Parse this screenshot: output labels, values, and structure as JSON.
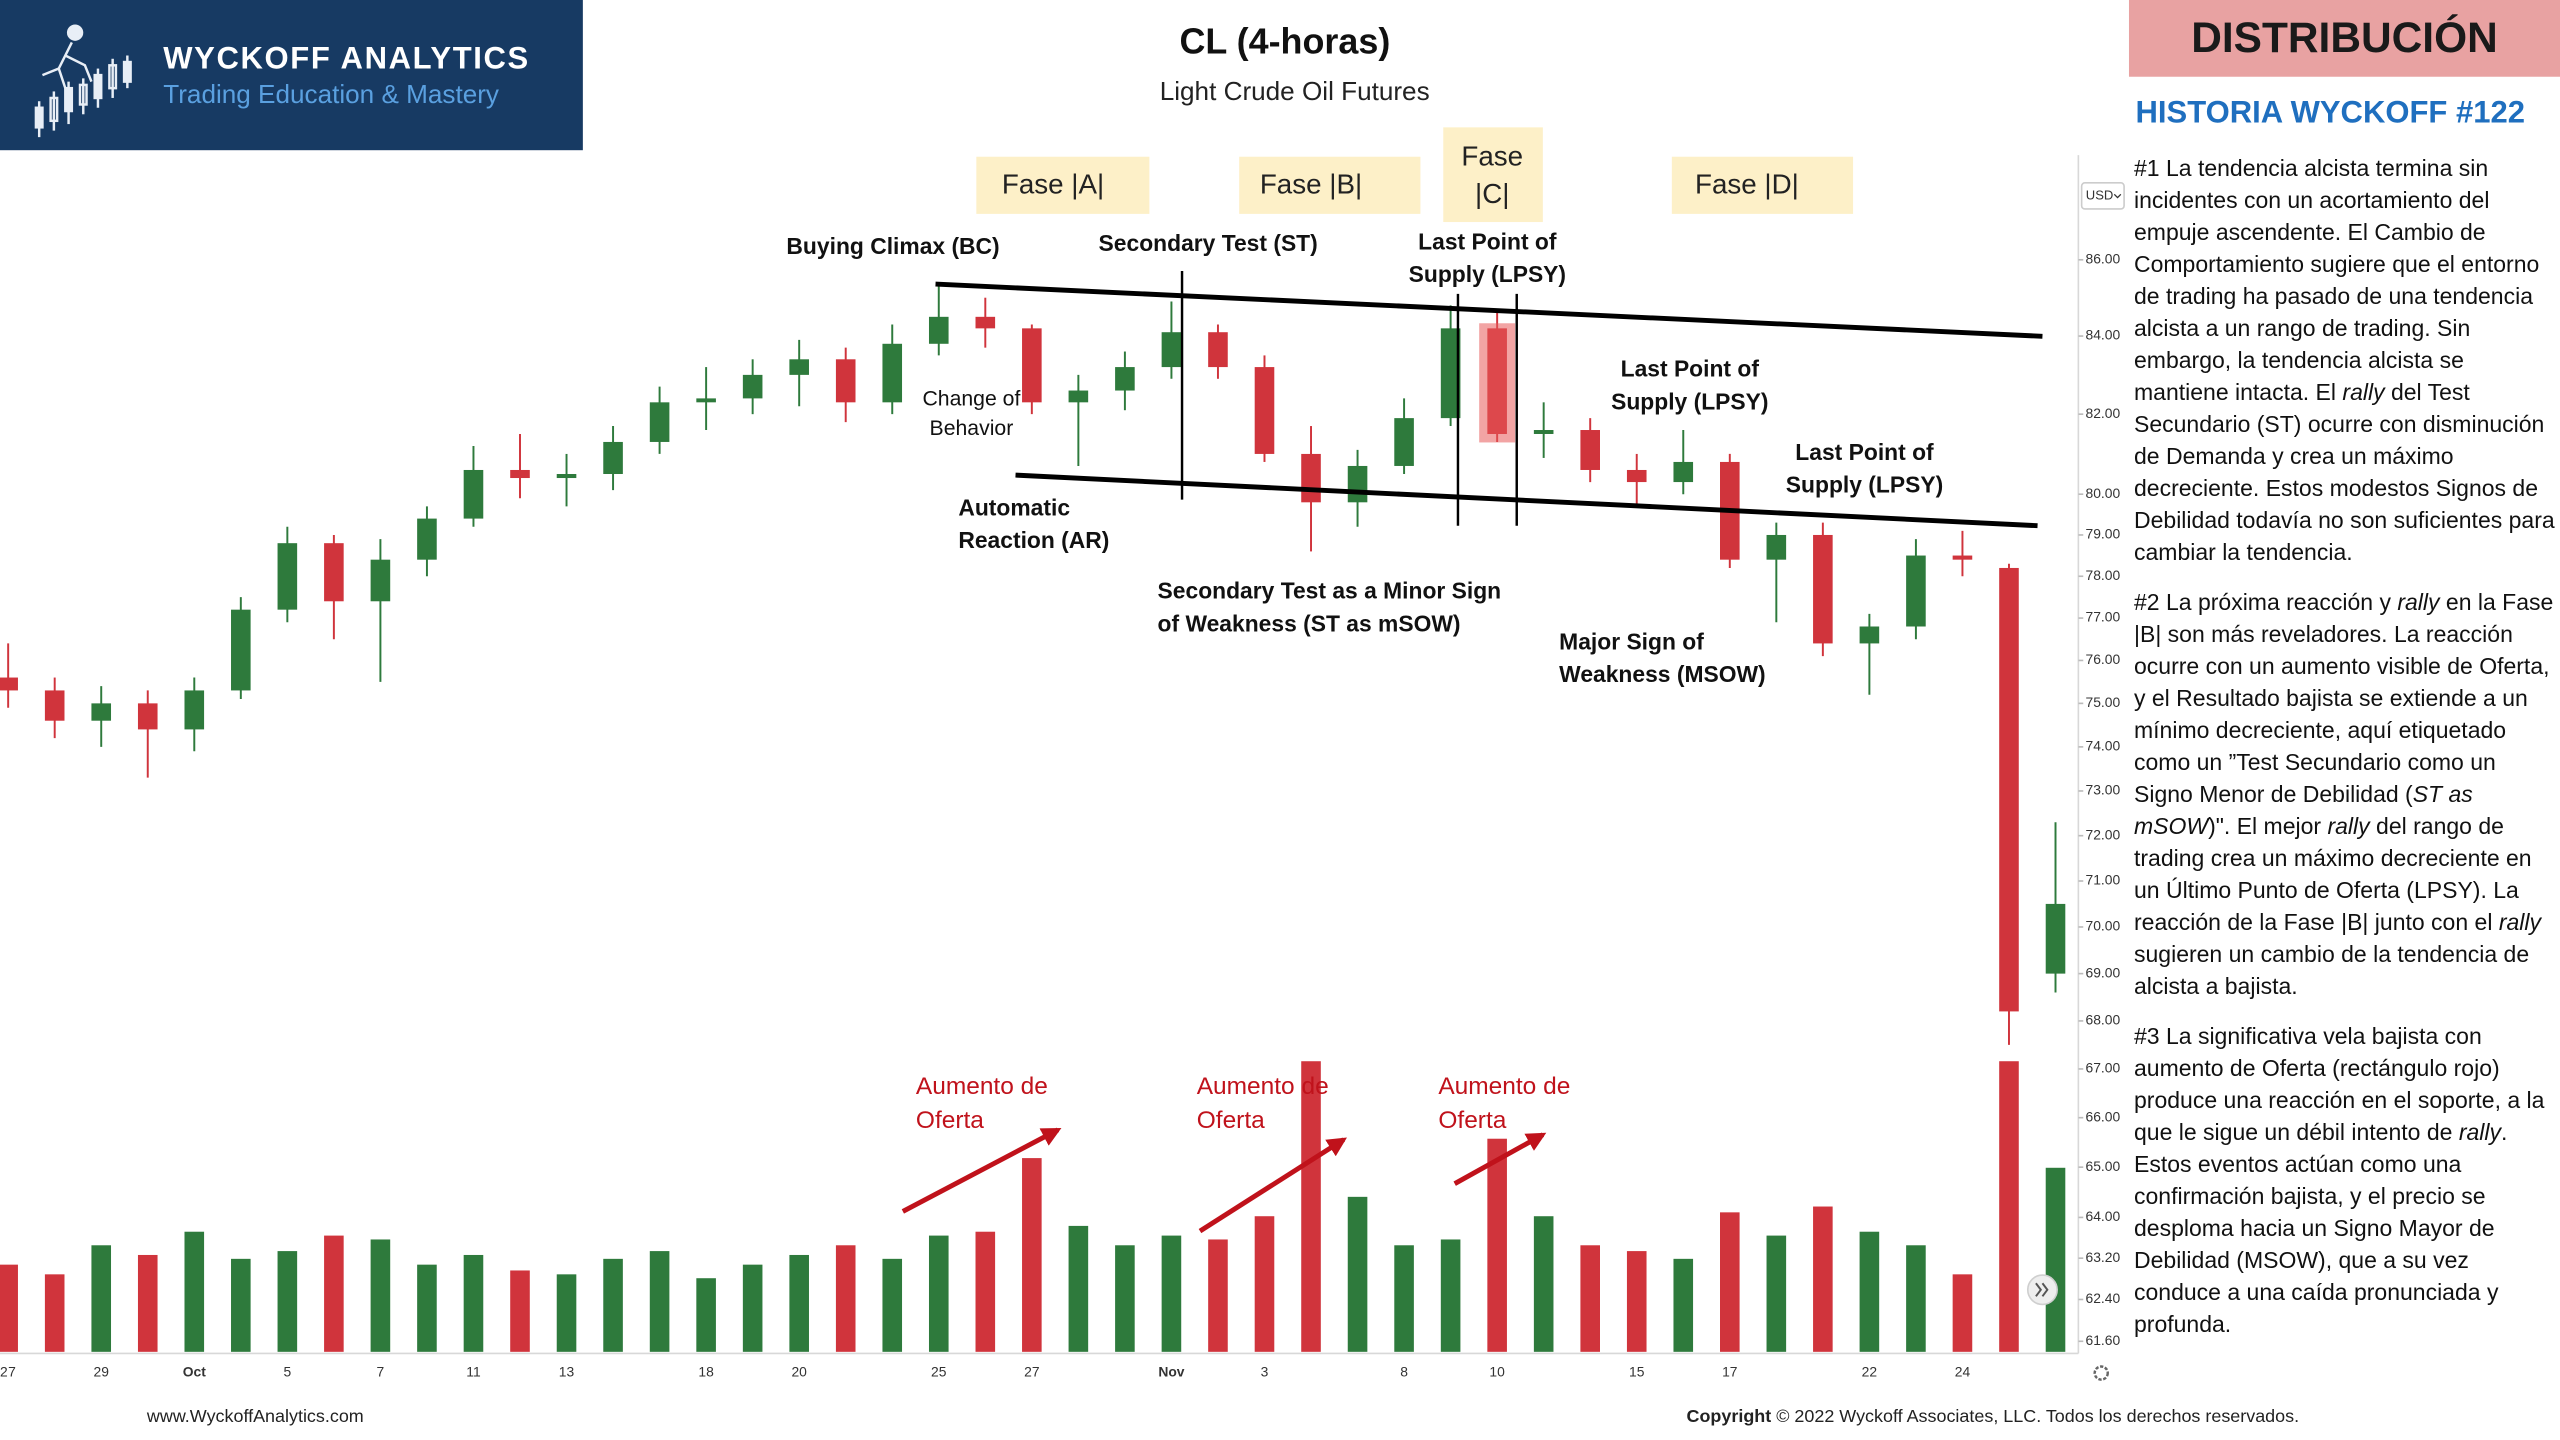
{
  "header": {
    "brand": "WYCKOFF ANALYTICS",
    "tagline": "Trading Education & Mastery"
  },
  "chart_data": {
    "type": "candlestick",
    "title": "CL (4-horas)",
    "subtitle": "Light Crude Oil Futures",
    "categories": [
      "27",
      null,
      "29",
      null,
      "Oct",
      null,
      "5",
      null,
      "7",
      null,
      "11",
      null,
      "13",
      null,
      null,
      "18",
      null,
      "20",
      null,
      null,
      "25",
      null,
      "27",
      null,
      null,
      "Nov",
      null,
      "3",
      null,
      null,
      "8",
      null,
      "10",
      null,
      null,
      "15",
      null,
      "17",
      null,
      null,
      "22",
      null,
      "24",
      null,
      null
    ],
    "open": [
      75.6,
      75.3,
      74.6,
      75.0,
      74.4,
      75.3,
      77.2,
      78.8,
      77.4,
      78.4,
      79.4,
      80.6,
      80.4,
      80.5,
      81.3,
      82.3,
      82.4,
      83.0,
      83.4,
      82.3,
      83.8,
      84.5,
      84.2,
      82.3,
      82.6,
      83.2,
      84.1,
      83.2,
      81.0,
      79.8,
      80.7,
      81.9,
      84.2,
      81.5,
      81.6,
      80.6,
      80.3,
      80.8,
      78.4,
      79.0,
      76.4,
      76.8,
      78.5,
      78.2,
      69.0
    ],
    "high": [
      76.4,
      75.6,
      75.4,
      75.3,
      75.6,
      77.5,
      79.2,
      79.0,
      78.9,
      79.7,
      81.2,
      81.5,
      81.0,
      81.7,
      82.7,
      83.2,
      83.4,
      83.9,
      83.7,
      84.3,
      85.4,
      85.0,
      84.3,
      83.0,
      83.6,
      84.9,
      84.3,
      83.5,
      81.7,
      81.1,
      82.4,
      84.8,
      84.6,
      82.3,
      81.9,
      81.0,
      81.6,
      81.0,
      79.3,
      79.3,
      77.1,
      78.9,
      79.1,
      78.3,
      72.3
    ],
    "low": [
      74.9,
      74.2,
      74.0,
      73.3,
      73.9,
      75.1,
      76.9,
      76.5,
      75.5,
      78.0,
      79.2,
      79.9,
      79.7,
      80.1,
      81.0,
      81.6,
      82.0,
      82.2,
      81.8,
      82.0,
      83.5,
      83.7,
      82.0,
      80.7,
      82.1,
      82.9,
      82.9,
      80.8,
      78.6,
      79.2,
      80.5,
      81.7,
      81.3,
      80.9,
      80.3,
      79.7,
      80.0,
      78.2,
      76.9,
      76.1,
      75.2,
      76.5,
      78.0,
      67.5,
      68.6
    ],
    "close": [
      75.3,
      74.6,
      75.0,
      74.4,
      75.3,
      77.2,
      78.8,
      77.4,
      78.4,
      79.4,
      80.6,
      80.4,
      80.5,
      81.3,
      82.3,
      82.4,
      83.0,
      83.4,
      82.3,
      83.8,
      84.5,
      84.2,
      82.3,
      82.6,
      83.2,
      84.1,
      83.2,
      81.0,
      79.8,
      80.7,
      81.9,
      84.2,
      81.5,
      81.6,
      80.6,
      80.3,
      80.8,
      78.4,
      79.0,
      76.4,
      76.8,
      78.5,
      78.4,
      68.2,
      70.5
    ],
    "volume": [
      45,
      40,
      55,
      50,
      62,
      48,
      52,
      60,
      58,
      45,
      50,
      42,
      40,
      48,
      52,
      38,
      45,
      50,
      55,
      48,
      60,
      62,
      100,
      65,
      55,
      60,
      58,
      70,
      150,
      80,
      55,
      58,
      110,
      70,
      55,
      52,
      48,
      72,
      60,
      75,
      62,
      55,
      40,
      150,
      95
    ],
    "up_color": "#2e7a3c",
    "down_color": "#d0343c",
    "log_scale": true,
    "ylim": [
      61.4,
      88.6
    ],
    "yticks": [
      {
        "value": 86,
        "label": "86.00"
      },
      {
        "value": 84,
        "label": "84.00"
      },
      {
        "value": 82,
        "label": "82.00"
      },
      {
        "value": 80,
        "label": "80.00"
      },
      {
        "value": 79,
        "label": "79.00"
      },
      {
        "value": 78,
        "label": "78.00"
      },
      {
        "value": 77,
        "label": "77.00"
      },
      {
        "value": 76,
        "label": "76.00"
      },
      {
        "value": 75,
        "label": "75.00"
      },
      {
        "value": 74,
        "label": "74.00"
      },
      {
        "value": 73,
        "label": "73.00"
      },
      {
        "value": 72,
        "label": "72.00"
      },
      {
        "value": 71,
        "label": "71.00"
      },
      {
        "value": 70,
        "label": "70.00"
      },
      {
        "value": 69,
        "label": "69.00"
      },
      {
        "value": 68,
        "label": "68.00"
      },
      {
        "value": 67,
        "label": "67.00"
      },
      {
        "value": 66,
        "label": "66.00"
      },
      {
        "value": 65,
        "label": "65.00"
      },
      {
        "value": 64,
        "label": "64.00"
      },
      {
        "value": 63.2,
        "label": "63.20"
      },
      {
        "value": 62.4,
        "label": "62.40"
      },
      {
        "value": 61.6,
        "label": "61.60"
      }
    ],
    "volume_ylim": [
      0,
      150
    ],
    "currency": "USD",
    "phases": [
      {
        "lines": [
          "Fase |A|"
        ]
      },
      {
        "lines": [
          "Fase |B|"
        ]
      },
      {
        "lines": [
          "Fase",
          "|C|"
        ]
      },
      {
        "lines": [
          "Fase |D|"
        ]
      }
    ],
    "annotations": [
      {
        "lines": [
          "Buying Climax (BC)"
        ]
      },
      {
        "lines": [
          "Secondary Test (ST)"
        ]
      },
      {
        "lines": [
          "Last Point of",
          "Supply (LPSY)"
        ]
      },
      {
        "lines": [
          "Change of",
          "Behavior"
        ]
      },
      {
        "lines": [
          "Automatic",
          "Reaction (AR)"
        ]
      },
      {
        "lines": [
          "Secondary Test as a Minor Sign",
          "of Weakness (ST as mSOW)"
        ]
      },
      {
        "lines": [
          "Last Point of",
          "Supply (LPSY)"
        ]
      },
      {
        "lines": [
          "Last Point of",
          "Supply (LPSY)"
        ]
      },
      {
        "lines": [
          "Major Sign of",
          "Weakness (MSOW)"
        ]
      },
      {
        "lines": [
          "Aumento de",
          "Oferta"
        ]
      },
      {
        "lines": [
          "Aumento de",
          "Oferta"
        ]
      },
      {
        "lines": [
          "Aumento de",
          "Oferta"
        ]
      }
    ]
  },
  "panel": {
    "badge": "DISTRIBUCIÓN",
    "heading": "HISTORIA WYCKOFF #122",
    "paragraphs": [
      [
        "#1 La tendencia alcista termina sin incidentes con un acortamiento del empuje ascendente. El Cambio de Comportamiento sugiere que el entorno de trading ha pasado de una tendencia alcista a un rango de trading. Sin embargo, la tendencia alcista se mantiene intacta. El ",
        {
          "em": "rally"
        },
        " del Test Secundario (ST) ocurre con disminución de Demanda y crea un máximo decreciente.  Estos modestos Signos de Debilidad todavía no son suficientes para cambiar la tendencia."
      ],
      [
        "#2 La próxima reacción y ",
        {
          "em": "rally"
        },
        " en la Fase |B| son más reveladores. La reacción ocurre con un aumento visible de Oferta, y el Resultado bajista se extiende a un mínimo decreciente, aquí etiquetado como un ”Test Secundario como un Signo Menor de Debilidad (",
        {
          "em": "ST as mSOW"
        },
        ")\". El mejor ",
        {
          "em": "rally"
        },
        " del rango de trading crea un máximo decreciente en un Último Punto de Oferta (LPSY). La reacción de la Fase |B| junto con el ",
        {
          "em": "rally"
        },
        " sugieren un cambio de la tendencia de alcista a bajista."
      ],
      [
        "#3 La significativa vela bajista con aumento de Oferta (rectángulo rojo) produce una reacción en el soporte, a la que le sigue un débil intento de ",
        {
          "em": "rally"
        },
        ". Estos eventos actúan como una confirmación bajista, y el precio se desploma hacia un Signo Mayor de Debilidad (MSOW), que a su vez conduce a una caída pronunciada y profunda."
      ]
    ]
  },
  "footer": {
    "website": "www.WyckoffAnalytics.com",
    "copyright_label": "Copyright",
    "copyright_text": " © 2022 Wyckoff Associates, LLC. Todos los derechos reservados."
  }
}
